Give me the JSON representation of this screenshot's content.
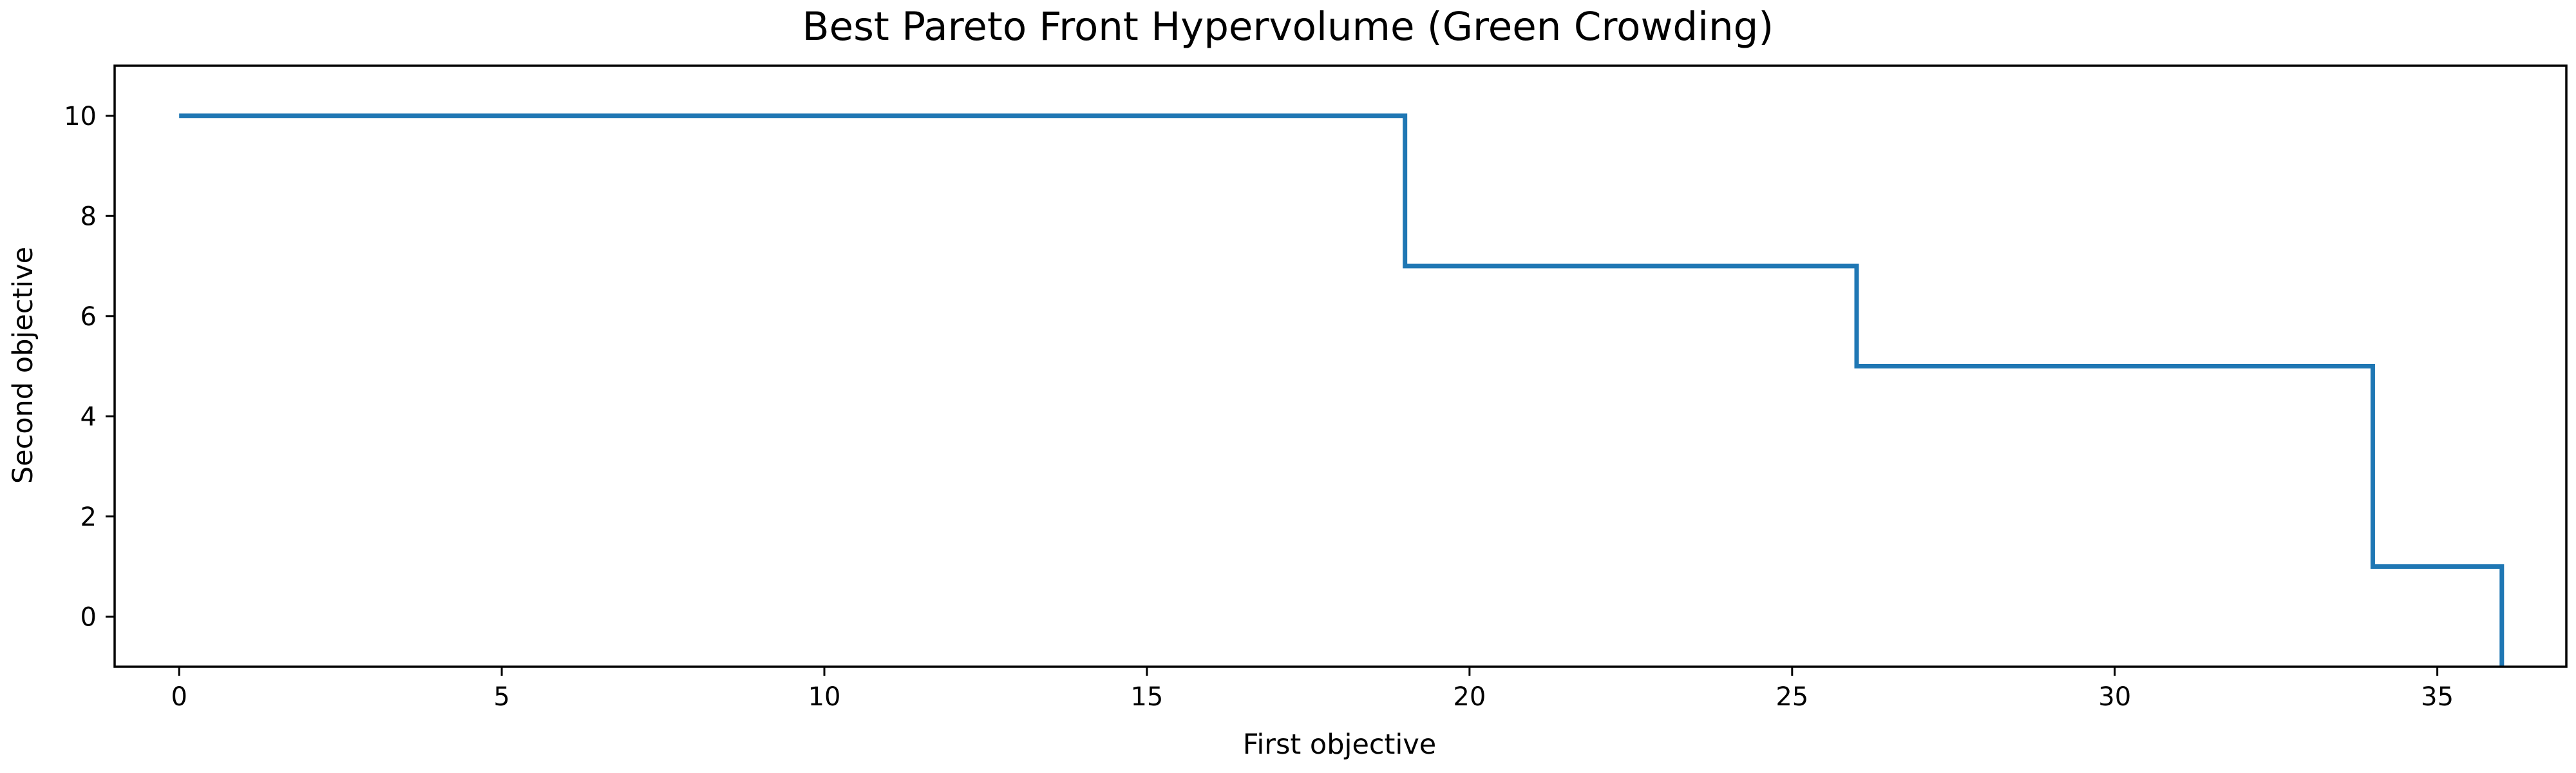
{
  "chart_data": {
    "type": "line",
    "drawstyle": "steps-post",
    "title": "Best Pareto Front Hypervolume (Green Crowding)",
    "xlabel": "First objective",
    "ylabel": "Second objective",
    "xlim": [
      -1,
      37
    ],
    "ylim": [
      -1,
      11
    ],
    "xticks": [
      0,
      5,
      10,
      15,
      20,
      25,
      30,
      35
    ],
    "yticks": [
      0,
      2,
      4,
      6,
      8,
      10
    ],
    "grid": false,
    "legend": "none",
    "series": [
      {
        "color": "#1f77b4",
        "x": [
          0,
          19,
          26,
          34,
          36
        ],
        "y": [
          10,
          7,
          5,
          1,
          -1
        ]
      }
    ]
  }
}
